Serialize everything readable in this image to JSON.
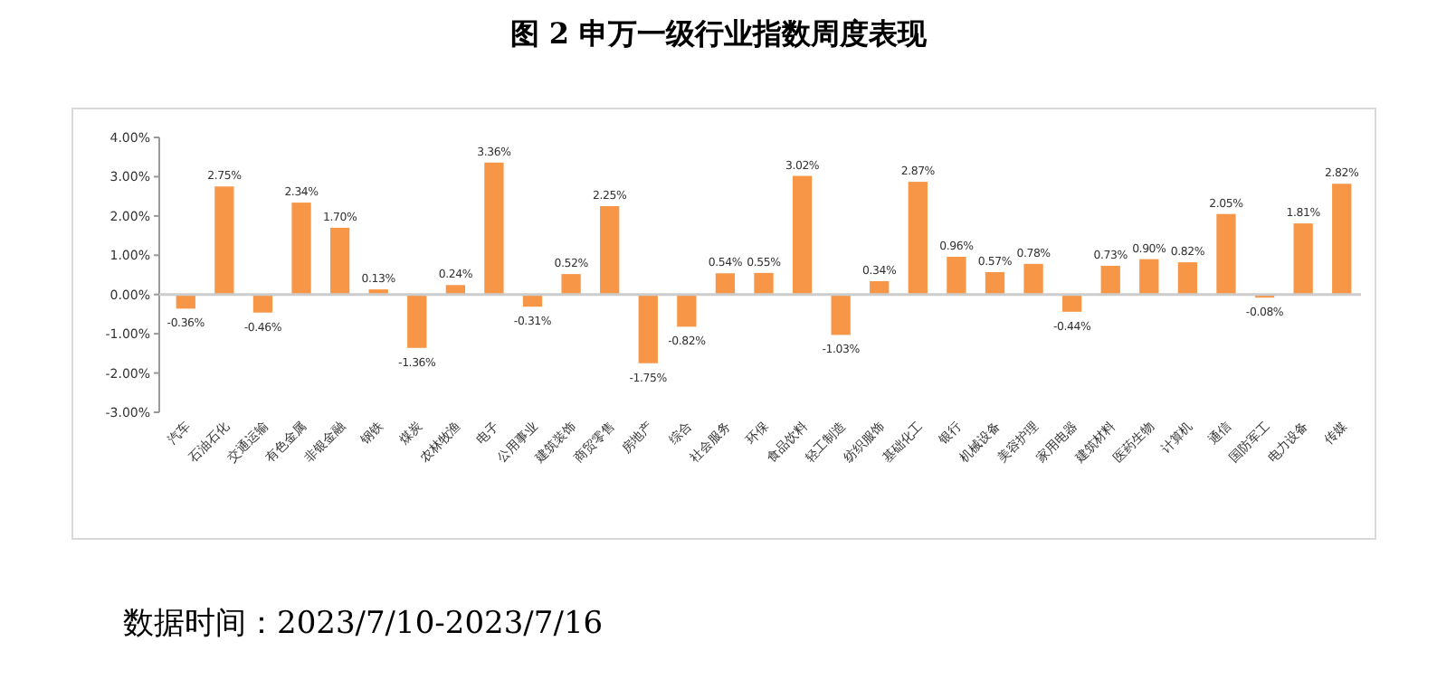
{
  "chart_data": {
    "type": "bar",
    "title": "图 2  申万一级行业指数周度表现",
    "categories": [
      "汽车",
      "石油石化",
      "交通运输",
      "有色金属",
      "非银金融",
      "钢铁",
      "煤炭",
      "农林牧渔",
      "电子",
      "公用事业",
      "建筑装饰",
      "商贸零售",
      "房地产",
      "综合",
      "社会服务",
      "环保",
      "食品饮料",
      "轻工制造",
      "纺织服饰",
      "基础化工",
      "银行",
      "机械设备",
      "美容护理",
      "家用电器",
      "建筑材料",
      "医药生物",
      "计算机",
      "通信",
      "国防军工",
      "电力设备",
      "传媒"
    ],
    "values": [
      -0.36,
      2.75,
      -0.46,
      2.34,
      1.7,
      0.13,
      -1.36,
      0.24,
      3.36,
      -0.31,
      0.52,
      2.25,
      -1.75,
      -0.82,
      0.54,
      0.55,
      3.02,
      -1.03,
      0.34,
      2.87,
      0.96,
      0.57,
      0.78,
      -0.44,
      0.73,
      0.9,
      0.82,
      2.05,
      -0.08,
      1.81,
      2.82
    ],
    "value_labels": [
      "-0.36%",
      "2.75%",
      "-0.46%",
      "2.34%",
      "1.70%",
      "0.13%",
      "-1.36%",
      "0.24%",
      "3.36%",
      "-0.31%",
      "0.52%",
      "2.25%",
      "-1.75%",
      "-0.82%",
      "0.54%",
      "0.55%",
      "3.02%",
      "-1.03%",
      "0.34%",
      "2.87%",
      "0.96%",
      "0.57%",
      "0.78%",
      "-0.44%",
      "0.73%",
      "0.90%",
      "0.82%",
      "2.05%",
      "-0.08%",
      "1.81%",
      "2.82%"
    ],
    "color": "#f79646",
    "ylim": [
      -3,
      4
    ],
    "yticks": [
      {
        "value": -3,
        "label": "-3.00%"
      },
      {
        "value": -2,
        "label": "-2.00%"
      },
      {
        "value": -1,
        "label": "-1.00%"
      },
      {
        "value": 0,
        "label": "0.00%"
      },
      {
        "value": 1,
        "label": "1.00%"
      },
      {
        "value": 2,
        "label": "2.00%"
      },
      {
        "value": 3,
        "label": "3.00%"
      },
      {
        "value": 4,
        "label": "4.00%"
      }
    ],
    "annotations": [
      "数据时间：2023/7/10-2023/7/16"
    ]
  }
}
